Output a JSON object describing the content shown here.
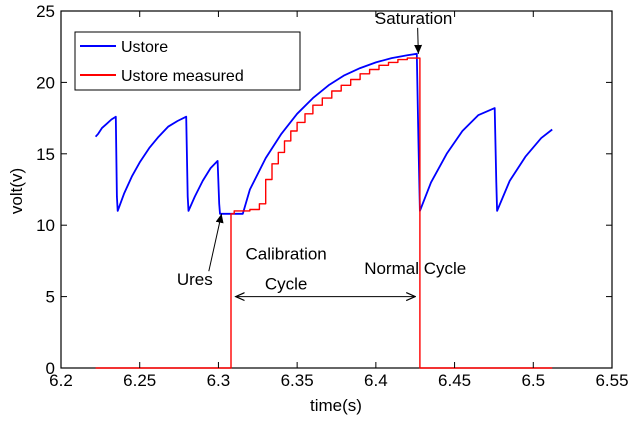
{
  "chart_data": {
    "type": "line",
    "xlabel": "time(s)",
    "ylabel": "volt(v)",
    "xlim": [
      6.2,
      6.55
    ],
    "ylim": [
      0,
      25
    ],
    "xticks": [
      "6.2",
      "6.25",
      "6.3",
      "6.35",
      "6.4",
      "6.45",
      "6.5",
      "6.55"
    ],
    "yticks": [
      "0",
      "5",
      "10",
      "15",
      "20",
      "25"
    ],
    "grid": false,
    "legend": {
      "placement": "top-left",
      "entries": [
        {
          "name": "Ustore",
          "color": "#0000ff"
        },
        {
          "name": "Ustore measured",
          "color": "#ff0000"
        }
      ]
    },
    "series": [
      {
        "name": "Ustore",
        "color": "#0000ff",
        "x": [
          6.222,
          6.2236,
          6.226,
          6.229,
          6.232,
          6.2348,
          6.2355,
          6.236,
          6.24,
          6.245,
          6.25,
          6.256,
          6.262,
          6.268,
          6.274,
          6.2795,
          6.2805,
          6.281,
          6.285,
          6.29,
          6.295,
          6.2995,
          6.3005,
          6.301,
          6.3055,
          6.31,
          6.3155,
          6.3155,
          6.32,
          6.33,
          6.34,
          6.35,
          6.36,
          6.37,
          6.38,
          6.39,
          6.4,
          6.41,
          6.42,
          6.426,
          6.427,
          6.428,
          6.435,
          6.445,
          6.455,
          6.465,
          6.4755,
          6.4765,
          6.477,
          6.485,
          6.495,
          6.505,
          6.512
        ],
        "y": [
          16.2,
          16.4,
          16.8,
          17.1,
          17.4,
          17.6,
          12.0,
          11.0,
          12.2,
          13.4,
          14.4,
          15.4,
          16.2,
          16.9,
          17.3,
          17.6,
          12.0,
          11.0,
          12.0,
          13.1,
          14.0,
          14.5,
          11.5,
          10.8,
          10.8,
          10.8,
          10.8,
          10.8,
          12.5,
          14.7,
          16.4,
          17.8,
          18.9,
          19.8,
          20.5,
          21.0,
          21.4,
          21.7,
          21.9,
          22.0,
          16.0,
          11.0,
          13.0,
          15.0,
          16.6,
          17.7,
          18.2,
          13.0,
          11.0,
          13.1,
          14.8,
          16.1,
          16.7
        ]
      },
      {
        "name": "Ustore measured",
        "color": "#ff0000",
        "x": [
          6.222,
          6.308,
          6.308,
          6.31,
          6.31,
          6.32,
          6.32,
          6.326,
          6.326,
          6.33,
          6.33,
          6.334,
          6.334,
          6.338,
          6.338,
          6.342,
          6.342,
          6.346,
          6.346,
          6.35,
          6.35,
          6.355,
          6.355,
          6.36,
          6.36,
          6.366,
          6.366,
          6.372,
          6.372,
          6.378,
          6.378,
          6.384,
          6.384,
          6.39,
          6.39,
          6.396,
          6.396,
          6.402,
          6.402,
          6.408,
          6.408,
          6.414,
          6.414,
          6.42,
          6.42,
          6.428,
          6.428,
          6.512
        ],
        "y": [
          0,
          0,
          10.8,
          10.8,
          11.0,
          11.0,
          11.1,
          11.1,
          11.5,
          11.5,
          13.2,
          13.2,
          14.3,
          14.3,
          15.1,
          15.1,
          15.9,
          15.9,
          16.6,
          16.6,
          17.2,
          17.2,
          17.8,
          17.8,
          18.4,
          18.4,
          18.9,
          18.9,
          19.4,
          19.4,
          19.8,
          19.8,
          20.2,
          20.2,
          20.6,
          20.6,
          20.9,
          20.9,
          21.2,
          21.2,
          21.4,
          21.4,
          21.6,
          21.6,
          21.7,
          21.7,
          0,
          0
        ]
      }
    ],
    "annotations": [
      {
        "id": "saturation",
        "text": "Saturation",
        "x": 6.424,
        "y": 24.1,
        "arrow_to": [
          6.427,
          22.0
        ]
      },
      {
        "id": "ures",
        "text": "Ures",
        "x": 6.285,
        "y": 5.8,
        "arrow_to": [
          6.302,
          10.8
        ]
      },
      {
        "id": "calibration",
        "text": "Calibration",
        "x": 6.343,
        "y": 7.6
      },
      {
        "id": "calibration2",
        "text": "Cycle",
        "x": 6.343,
        "y": 5.5
      },
      {
        "id": "normal",
        "text": "Normal Cycle",
        "x": 6.425,
        "y": 6.6
      }
    ],
    "span_arrow": {
      "from": 6.311,
      "to": 6.425,
      "y": 5.0
    }
  }
}
